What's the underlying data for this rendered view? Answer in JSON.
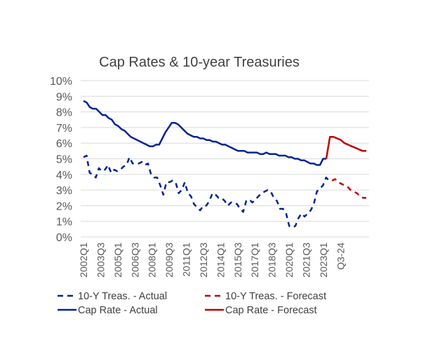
{
  "chart_data": {
    "type": "line",
    "title": "Cap Rates & 10-year Treasuries",
    "xlabel": "",
    "ylabel": "",
    "ylim": [
      0,
      10
    ],
    "yticks": [
      "0%",
      "1%",
      "2%",
      "3%",
      "4%",
      "5%",
      "6%",
      "7%",
      "8%",
      "9%",
      "10%"
    ],
    "grid": true,
    "legend_position": "bottom",
    "x_start": "2002Q1",
    "x_end": "2026Q4",
    "frequency": "quarterly",
    "xtick_labels": [
      "2002Q1",
      "2003Q3",
      "2005Q1",
      "2006Q3",
      "2008Q1",
      "2009Q3",
      "2011Q1",
      "2012Q3",
      "2014Q1",
      "2015Q3",
      "2017Q1",
      "2018Q3",
      "2020Q1",
      "2021Q3",
      "2023Q1",
      "Q3-24"
    ],
    "xtick_indices": [
      0,
      6,
      12,
      18,
      24,
      30,
      36,
      42,
      48,
      54,
      60,
      66,
      72,
      78,
      84,
      90
    ],
    "series": [
      {
        "name": "10-Y Treas. - Actual",
        "color": "#002395",
        "style": "dashed",
        "start_index": 0,
        "values": [
          5.1,
          5.2,
          4.1,
          4.0,
          3.8,
          4.4,
          4.2,
          4.3,
          4.6,
          4.1,
          4.3,
          4.2,
          4.3,
          4.5,
          4.6,
          5.1,
          4.7,
          4.7,
          4.7,
          4.8,
          4.6,
          4.7,
          4.0,
          3.8,
          3.8,
          3.3,
          2.7,
          3.5,
          3.5,
          3.6,
          3.5,
          2.8,
          3.0,
          3.5,
          2.8,
          2.6,
          2.1,
          1.9,
          1.7,
          2.0,
          2.0,
          2.3,
          2.8,
          2.7,
          2.5,
          2.5,
          2.3,
          2.0,
          2.2,
          2.2,
          2.1,
          1.8,
          1.6,
          2.3,
          2.4,
          2.2,
          2.4,
          2.6,
          2.8,
          2.9,
          3.0,
          2.9,
          2.5,
          2.3,
          1.8,
          1.8,
          1.5,
          0.7,
          0.6,
          0.7,
          1.2,
          1.5,
          1.3,
          1.5,
          1.7,
          2.1,
          2.9,
          3.1,
          3.3,
          3.8,
          3.6
        ],
        "note": "values sampled across 2002Q1–2023Q3 actual period"
      },
      {
        "name": "10-Y Treas. - Forecast",
        "color": "#c00000",
        "style": "dashed",
        "start_index": 80,
        "values": [
          3.6,
          3.7,
          3.5,
          3.4,
          3.3,
          3.2,
          3.0,
          2.9,
          2.8,
          2.6,
          2.5,
          2.5
        ]
      },
      {
        "name": "Cap Rate - Actual",
        "color": "#002395",
        "style": "solid",
        "start_index": 0,
        "values": [
          8.7,
          8.6,
          8.3,
          8.2,
          8.2,
          8.0,
          7.8,
          7.8,
          7.6,
          7.5,
          7.2,
          7.1,
          6.9,
          6.8,
          6.6,
          6.4,
          6.3,
          6.2,
          6.1,
          6.0,
          5.9,
          5.8,
          5.8,
          5.9,
          5.9,
          6.3,
          6.7,
          7.0,
          7.3,
          7.3,
          7.2,
          7.0,
          6.8,
          6.6,
          6.5,
          6.4,
          6.4,
          6.3,
          6.3,
          6.2,
          6.2,
          6.1,
          6.1,
          6.0,
          5.9,
          5.9,
          5.8,
          5.7,
          5.6,
          5.5,
          5.5,
          5.5,
          5.4,
          5.4,
          5.4,
          5.4,
          5.3,
          5.3,
          5.4,
          5.3,
          5.3,
          5.3,
          5.2,
          5.2,
          5.2,
          5.1,
          5.1,
          5.0,
          5.0,
          4.9,
          4.9,
          4.8,
          4.7,
          4.7,
          4.6,
          4.6,
          5.0,
          5.0
        ],
        "note": "values sampled across 2002Q1–2023Q1 actual period"
      },
      {
        "name": "Cap Rate - Forecast",
        "color": "#c00000",
        "style": "solid",
        "start_index": 77,
        "values": [
          5.0,
          6.4,
          6.4,
          6.3,
          6.2,
          6.0,
          5.9,
          5.8,
          5.7,
          5.6,
          5.5,
          5.5
        ]
      }
    ],
    "legend": [
      {
        "label": "10-Y Treas. - Actual",
        "color": "#002395",
        "style": "dashed"
      },
      {
        "label": "10-Y Treas. - Forecast",
        "color": "#c00000",
        "style": "dashed"
      },
      {
        "label": "Cap Rate - Actual",
        "color": "#002395",
        "style": "solid"
      },
      {
        "label": "Cap Rate - Forecast",
        "color": "#c00000",
        "style": "solid"
      }
    ]
  }
}
